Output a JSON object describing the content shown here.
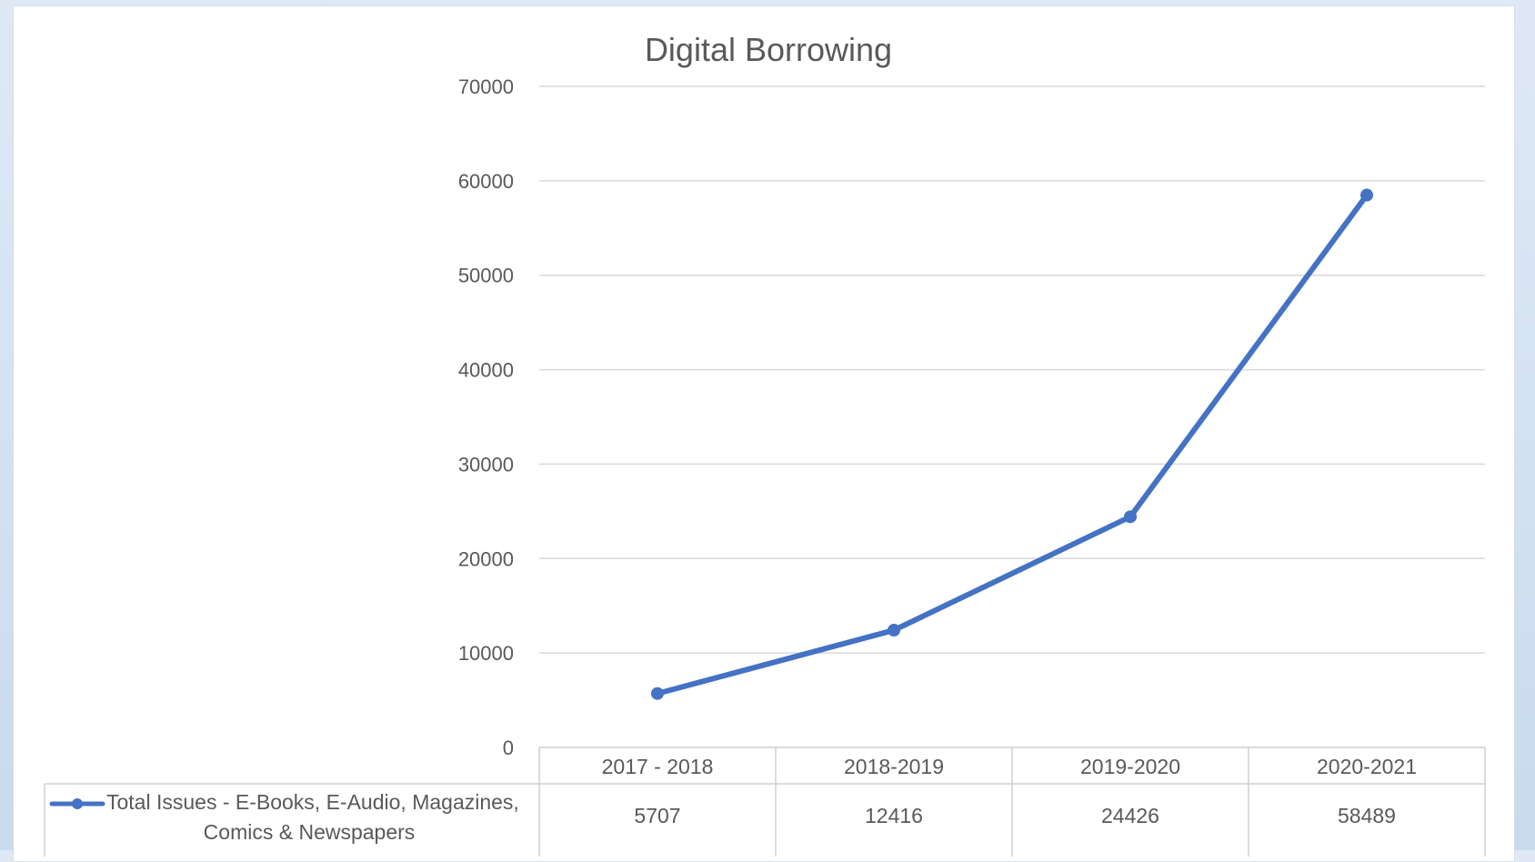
{
  "chart_data": {
    "type": "line",
    "title": "Digital Borrowing",
    "categories": [
      "2017 - 2018",
      "2018-2019",
      "2019-2020",
      "2020-2021"
    ],
    "series": [
      {
        "name": "Total Issues - E-Books, E-Audio, Magazines, Comics & Newspapers",
        "name_lines": [
          "Total Issues - E-Books, E-Audio, Magazines,",
          "Comics & Newspapers"
        ],
        "values": [
          5707,
          12416,
          24426,
          58489
        ],
        "color": "#4472c4"
      }
    ],
    "ylim": [
      0,
      70000
    ],
    "yticks": [
      0,
      10000,
      20000,
      30000,
      40000,
      50000,
      60000,
      70000
    ],
    "grid": true,
    "data_table": true
  }
}
